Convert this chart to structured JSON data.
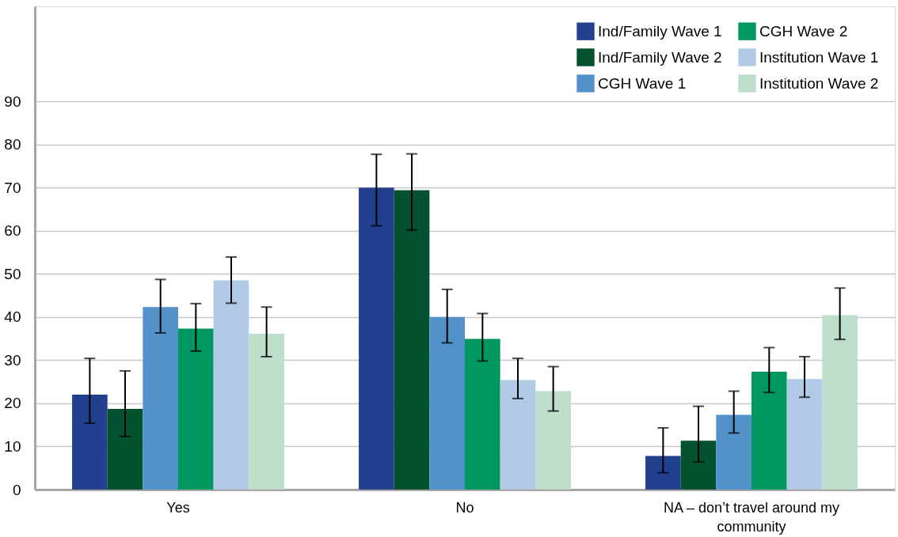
{
  "chart_data": {
    "type": "bar",
    "categories": [
      "Yes",
      "No",
      "NA – don’t travel around my community"
    ],
    "series": [
      {
        "name": "Ind/Family Wave 1",
        "color": "#21418f",
        "values": [
          22,
          70,
          7.8
        ],
        "errors": [
          [
            15.4,
            30.4
          ],
          [
            61.1,
            77.7
          ],
          [
            3.9,
            14.3
          ]
        ]
      },
      {
        "name": "Ind/Family Wave 2",
        "color": "#03512f",
        "values": [
          18.7,
          69.4,
          11.3
        ],
        "errors": [
          [
            12.3,
            27.5
          ],
          [
            60.1,
            77.8
          ],
          [
            6.4,
            19.3
          ]
        ]
      },
      {
        "name": "CGH Wave 1",
        "color": "#5291ca",
        "values": [
          42.3,
          40,
          17.3
        ],
        "errors": [
          [
            36.3,
            48.7
          ],
          [
            34,
            46.4
          ],
          [
            13.1,
            22.8
          ]
        ]
      },
      {
        "name": "CGH Wave 2",
        "color": "#00985e",
        "values": [
          37.3,
          34.9,
          27.3
        ],
        "errors": [
          [
            32.1,
            43.1
          ],
          [
            29.8,
            40.8
          ],
          [
            22.5,
            32.9
          ]
        ]
      },
      {
        "name": "Institution Wave 1",
        "color": "#b1cbe6",
        "values": [
          48.5,
          25.4,
          25.6
        ],
        "errors": [
          [
            43.2,
            53.9
          ],
          [
            21.1,
            30.4
          ],
          [
            21.4,
            30.8
          ]
        ]
      },
      {
        "name": "Institution Wave 2",
        "color": "#bddecb",
        "values": [
          36.1,
          22.8,
          40.4
        ],
        "errors": [
          [
            30.8,
            42.3
          ],
          [
            18.2,
            28.5
          ],
          [
            34.8,
            46.7
          ]
        ]
      }
    ],
    "ylim": [
      0,
      112
    ],
    "yticks": [
      0,
      10,
      20,
      30,
      40,
      50,
      60,
      70,
      80,
      90
    ],
    "grid": "y",
    "legend": "top right"
  }
}
